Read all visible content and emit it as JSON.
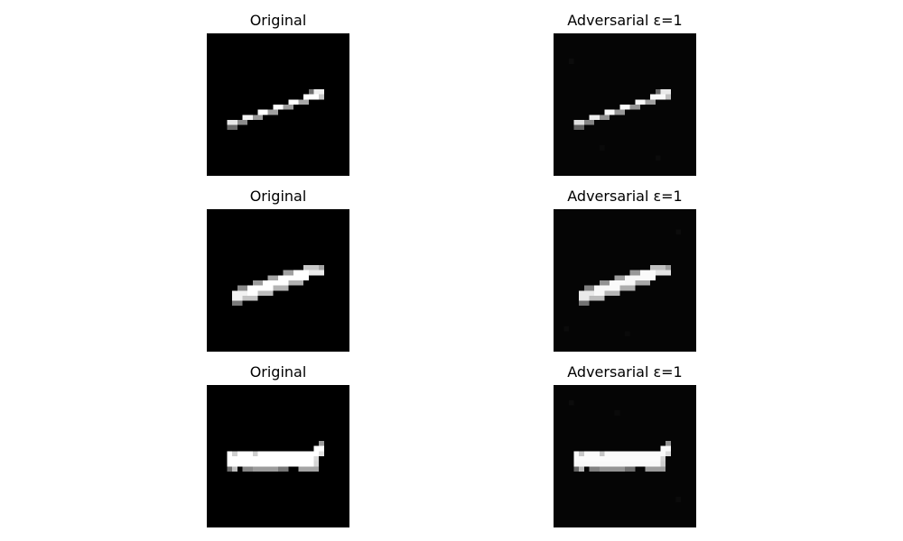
{
  "figure": {
    "background_color": "#ffffff",
    "panels": [
      {
        "title": "Original",
        "image": "digit-one-thin-diagonal"
      },
      {
        "title": "Adversarial ε=1",
        "image": "digit-one-thin-diagonal-perturbed"
      },
      {
        "title": "Original",
        "image": "digit-one-thick-diagonal"
      },
      {
        "title": "Adversarial ε=1",
        "image": "digit-one-thick-diagonal-perturbed"
      },
      {
        "title": "Original",
        "image": "digit-one-horizontal"
      },
      {
        "title": "Adversarial ε=1",
        "image": "digit-one-horizontal-perturbed"
      }
    ]
  }
}
